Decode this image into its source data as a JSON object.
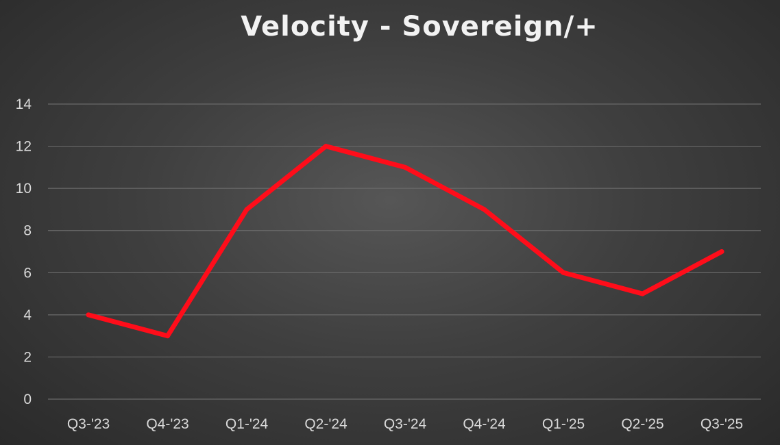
{
  "chart_data": {
    "type": "line",
    "title": "Velocity - Sovereign/+",
    "xlabel": "",
    "ylabel": "",
    "categories": [
      "Q3-'23",
      "Q4-'23",
      "Q1-'24",
      "Q2-'24",
      "Q3-'24",
      "Q4-'24",
      "Q1-'25",
      "Q2-'25",
      "Q3-'25"
    ],
    "series": [
      {
        "values": [
          4,
          3,
          9,
          12,
          11,
          9,
          6,
          5,
          7
        ],
        "color": "#ff0d1a"
      }
    ],
    "ylim": [
      0,
      14
    ],
    "yticks": [
      0,
      2,
      4,
      6,
      8,
      10,
      12,
      14
    ],
    "grid": true,
    "legend": "none"
  },
  "colors": {
    "background": "#3f3f3f",
    "gridline": "#6a6a6a",
    "text": "#d9d9d9",
    "title": "#f2f2f2"
  }
}
